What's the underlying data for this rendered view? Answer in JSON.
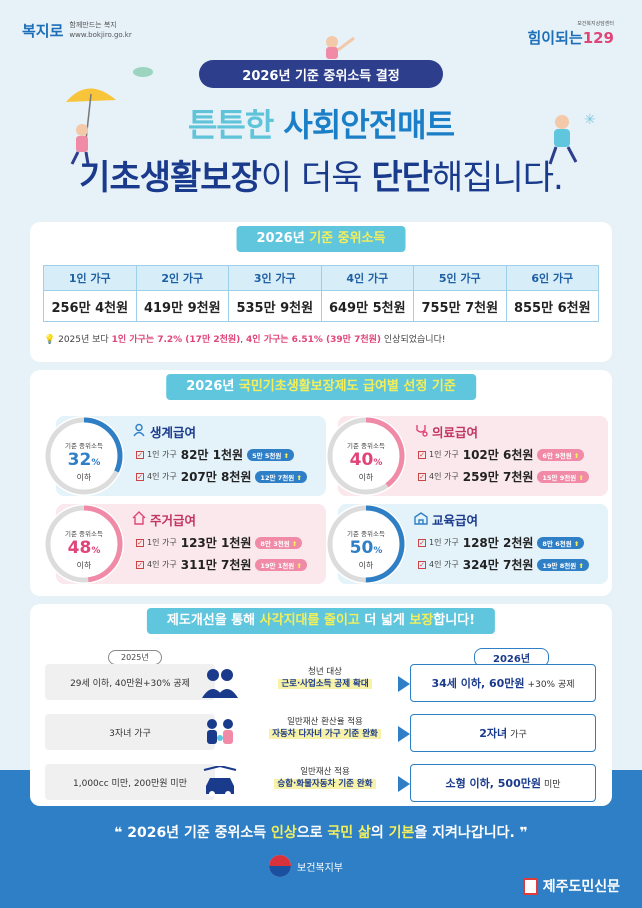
{
  "header": {
    "logo_left": {
      "name": "복지로",
      "tagline": "함께만드는 복지",
      "url": "www.bokjiro.go.kr"
    },
    "logo_right": {
      "tagline": "보건복지상담센터",
      "name": "힘이되는",
      "number": "129"
    },
    "pill": "2026년 기준 중위소득 결정",
    "headline_1_a": "튼튼한 ",
    "headline_1_b": "사회안전매트",
    "headline_2_a": "기초생활보장",
    "headline_2_b": "이 더욱 ",
    "headline_2_c": "단단",
    "headline_2_d": "해집니다."
  },
  "income": {
    "tag_a": "2026년 ",
    "tag_b": "기준 중위소득",
    "columns": [
      "1인 가구",
      "2인 가구",
      "3인 가구",
      "4인 가구",
      "5인 가구",
      "6인 가구"
    ],
    "values": [
      "256만 4천원",
      "419만 9천원",
      "535만 9천원",
      "649만 5천원",
      "755만 7천원",
      "855만 6천원"
    ],
    "note_a": "2025년 보다 ",
    "note_b": "1인 가구는 7.2% (17만 2천원)",
    "note_c": ", ",
    "note_d": "4인 가구는 6.51% (39만 7천원)",
    "note_e": " 인상되었습니다!"
  },
  "benefits": {
    "tag_a": "2026년 ",
    "tag_b": "국민기초생활보장제도 급여별 선정 기준",
    "items": [
      {
        "title": "생계급여",
        "icon": "person-icon",
        "circle_label": "기준 중위소득",
        "pct": "32",
        "pct_unit": "%",
        "sub": "이하",
        "color": "#2f7fc6",
        "fraction": 0.32,
        "rows": [
          {
            "hh": "1인 가구",
            "amount": "82만 1천원",
            "chip": "5만 5천원"
          },
          {
            "hh": "4인 가구",
            "amount": "207만 8천원",
            "chip": "12만 7천원"
          }
        ]
      },
      {
        "title": "의료급여",
        "icon": "stethoscope-icon",
        "circle_label": "기준 중위소득",
        "pct": "40",
        "pct_unit": "%",
        "sub": "이하",
        "color": "#f08aa7",
        "fraction": 0.4,
        "rows": [
          {
            "hh": "1인 가구",
            "amount": "102만 6천원",
            "chip": "6만 9천원"
          },
          {
            "hh": "4인 가구",
            "amount": "259만 7천원",
            "chip": "15만 9천원"
          }
        ]
      },
      {
        "title": "주거급여",
        "icon": "house-icon",
        "circle_label": "기준 중위소득",
        "pct": "48",
        "pct_unit": "%",
        "sub": "이하",
        "color": "#f08aa7",
        "fraction": 0.48,
        "rows": [
          {
            "hh": "1인 가구",
            "amount": "123만 1천원",
            "chip": "8만 3천원"
          },
          {
            "hh": "4인 가구",
            "amount": "311만 7천원",
            "chip": "19만 1천원"
          }
        ]
      },
      {
        "title": "교육급여",
        "icon": "school-icon",
        "circle_label": "기준 중위소득",
        "pct": "50",
        "pct_unit": "%",
        "sub": "이하",
        "color": "#2f7fc6",
        "fraction": 0.5,
        "rows": [
          {
            "hh": "1인 가구",
            "amount": "128만 2천원",
            "chip": "8만 6천원"
          },
          {
            "hh": "4인 가구",
            "amount": "324만 7천원",
            "chip": "19만 8천원"
          }
        ]
      }
    ]
  },
  "reform": {
    "tag_a": "제도개선을 통해 ",
    "tag_b": "사각지대를 줄이고",
    "tag_c": " 더 넓게 ",
    "tag_d": "보장",
    "tag_e": "합니다!",
    "year_old": "2025년",
    "year_new": "2026년",
    "rows": [
      {
        "old": "29세 이하, 40만원+30% 공제",
        "icon": "youth-icon",
        "mid_1": "청년 대상",
        "mid_2": "근로·사업소득 공제 확대",
        "new_b": "34세 이하, 60만원",
        "new_n": "+30% 공제"
      },
      {
        "old": "3자녀 가구",
        "icon": "family-icon",
        "mid_1": "일반재산 환산율 적용",
        "mid_2": "자동차 다자녀 가구 기준 완화",
        "new_b": "2자녀",
        "new_n": "가구"
      },
      {
        "old": "1,000cc 미만, 200만원 미만",
        "icon": "car-icon",
        "mid_1": "일반재산 적용",
        "mid_2": "승합·화물자동차 기준 완화",
        "new_b": "소형 이하, 500만원",
        "new_n": "미만"
      }
    ]
  },
  "footer": {
    "slogan_a": "2026년 기준 중위소득 ",
    "slogan_b": "인상",
    "slogan_c": "으로 ",
    "slogan_d": "국민 삶",
    "slogan_e": "의 ",
    "slogan_f": "기본",
    "slogan_g": "을 지켜나갑니다.",
    "ministry": "보건복지부",
    "publisher": "제주도민신문"
  },
  "colors": {
    "navy": "#2c3e8c",
    "blue": "#2f7fc6",
    "pink": "#f08aa7",
    "sky": "#5fc6de"
  }
}
